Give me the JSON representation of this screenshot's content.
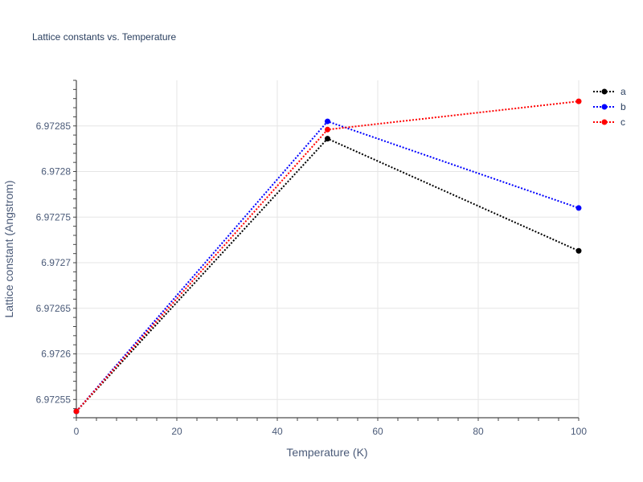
{
  "chart_data": {
    "type": "line",
    "title": "Lattice constants vs. Temperature",
    "xlabel": "Temperature (K)",
    "ylabel": "Lattice constant (Angstrom)",
    "x": [
      0,
      50,
      100
    ],
    "xlim": [
      0,
      100
    ],
    "ylim": [
      6.97253,
      6.9729
    ],
    "x_ticks": [
      0,
      20,
      40,
      60,
      80,
      100
    ],
    "x_tick_labels": [
      "0",
      "20",
      "40",
      "60",
      "80",
      "100"
    ],
    "y_ticks": [
      6.97255,
      6.9726,
      6.97265,
      6.9727,
      6.97275,
      6.9728,
      6.97285
    ],
    "y_tick_labels": [
      "6.97255",
      "6.9726",
      "6.97265",
      "6.9727",
      "6.97275",
      "6.9728",
      "6.97285"
    ],
    "grid": true,
    "legend_position": "top-right",
    "series": [
      {
        "name": "a",
        "color": "#000000",
        "values": [
          6.972537,
          6.972836,
          6.972713
        ]
      },
      {
        "name": "b",
        "color": "#0000ff",
        "values": [
          6.972537,
          6.972855,
          6.97276
        ]
      },
      {
        "name": "c",
        "color": "#ff0000",
        "values": [
          6.972537,
          6.972846,
          6.972877
        ]
      }
    ]
  }
}
